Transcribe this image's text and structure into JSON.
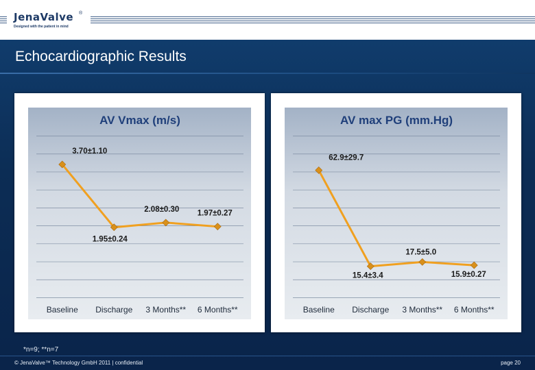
{
  "header": {
    "logo_text": "JenaValve",
    "logo_reg": "®",
    "logo_tagline": "Designed with the patient in mind"
  },
  "main": {
    "title": "Echocardiographic Results"
  },
  "colors": {
    "line": "#f0a020",
    "marker": "#d9901a",
    "title_text": "#1f3f7a",
    "plot_bg_top": "#a3b2c6",
    "plot_bg_bottom": "#e8ecf0"
  },
  "chart_data": [
    {
      "type": "line",
      "title": "AV Vmax (m/s)",
      "categories": [
        "Baseline",
        "Discharge",
        "3 Months**",
        "6 Months**"
      ],
      "values": [
        3.7,
        1.95,
        2.08,
        1.97
      ],
      "data_labels": [
        "3.70±1.10",
        "1.95±0.24",
        "2.08±0.30",
        "1.97±0.27"
      ],
      "ylim": [
        0,
        4.5
      ],
      "grid": true,
      "yaxis_labels_visible": false,
      "legend": false
    },
    {
      "type": "line",
      "title": "AV max PG (mm.Hg)",
      "categories": [
        "Baseline",
        "Discharge",
        "3 Months**",
        "6 Months**"
      ],
      "values": [
        62.9,
        15.4,
        17.5,
        15.9
      ],
      "data_labels": [
        "62.9±29.7",
        "15.4±3.4",
        "17.5±5.0",
        "15.9±0.27"
      ],
      "ylim": [
        0,
        80
      ],
      "grid": true,
      "yaxis_labels_visible": false,
      "legend": false
    }
  ],
  "footer": {
    "footnote": "*n=9; **n=7",
    "copyright": "© JenaValve™ Technology GmbH 2011 | confidential",
    "page": "page 20"
  }
}
